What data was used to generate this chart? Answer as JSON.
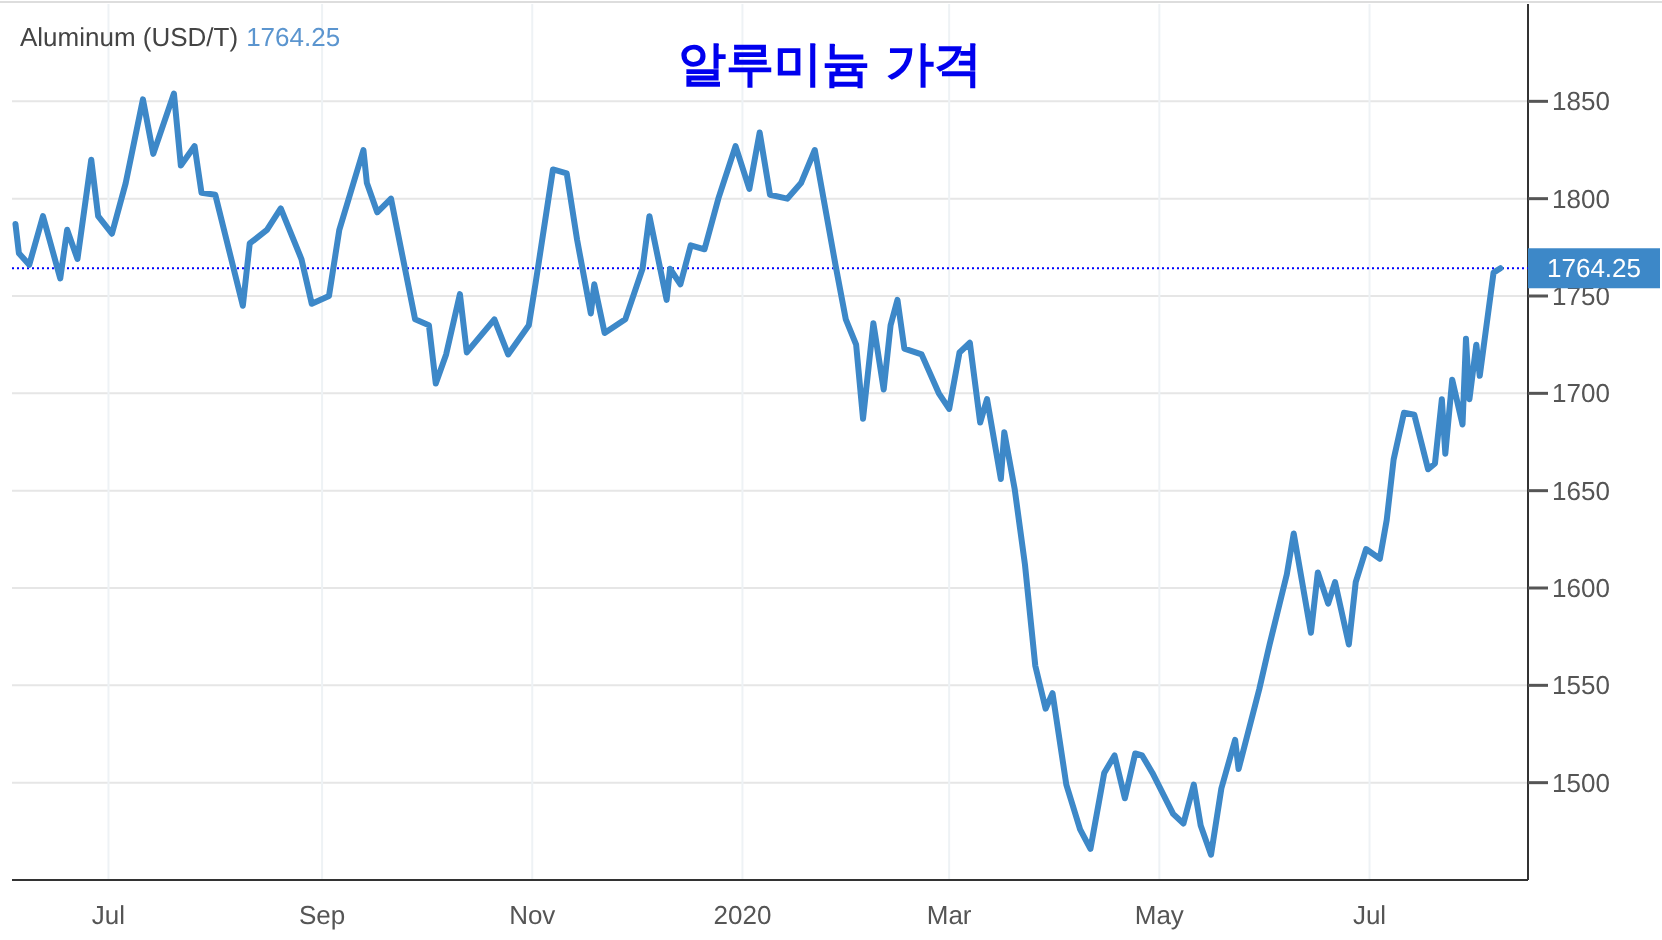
{
  "chart_data": {
    "type": "line",
    "title": "알루미늄 가격",
    "subtitle": "Aluminum (USD/T)",
    "x": [
      "2019-06-04",
      "2019-06-05",
      "2019-06-08",
      "2019-06-12",
      "2019-06-17",
      "2019-06-19",
      "2019-06-22",
      "2019-06-26",
      "2019-06-28",
      "2019-07-02",
      "2019-07-06",
      "2019-07-11",
      "2019-07-14",
      "2019-07-20",
      "2019-07-22",
      "2019-07-26",
      "2019-07-28",
      "2019-08-01",
      "2019-08-09",
      "2019-08-11",
      "2019-08-16",
      "2019-08-20",
      "2019-08-26",
      "2019-08-29",
      "2019-09-03",
      "2019-09-06",
      "2019-09-13",
      "2019-09-14",
      "2019-09-17",
      "2019-09-21",
      "2019-09-28",
      "2019-10-02",
      "2019-10-04",
      "2019-10-07",
      "2019-10-11",
      "2019-10-13",
      "2019-10-21",
      "2019-10-25",
      "2019-10-31",
      "2019-11-02",
      "2019-11-07",
      "2019-11-11",
      "2019-11-14",
      "2019-11-18",
      "2019-11-19",
      "2019-11-22",
      "2019-11-28",
      "2019-12-03",
      "2019-12-05",
      "2019-12-10",
      "2019-12-11",
      "2019-12-14",
      "2019-12-17",
      "2019-12-21",
      "2019-12-25",
      "2019-12-30",
      "2020-01-03",
      "2020-01-06",
      "2020-01-09",
      "2020-01-14",
      "2020-01-18",
      "2020-01-22",
      "2020-01-28",
      "2020-01-31",
      "2020-02-03",
      "2020-02-05",
      "2020-02-08",
      "2020-02-11",
      "2020-02-13",
      "2020-02-15",
      "2020-02-17",
      "2020-02-22",
      "2020-02-27",
      "2020-03-01",
      "2020-03-04",
      "2020-03-07",
      "2020-03-10",
      "2020-03-12",
      "2020-03-16",
      "2020-03-17",
      "2020-03-20",
      "2020-03-23",
      "2020-03-26",
      "2020-03-29",
      "2020-03-31",
      "2020-04-04",
      "2020-04-08",
      "2020-04-11",
      "2020-04-15",
      "2020-04-18",
      "2020-04-21",
      "2020-04-24",
      "2020-04-26",
      "2020-04-29",
      "2020-05-05",
      "2020-05-08",
      "2020-05-11",
      "2020-05-13",
      "2020-05-16",
      "2020-05-19",
      "2020-05-23",
      "2020-05-24",
      "2020-05-30",
      "2020-06-02",
      "2020-06-07",
      "2020-06-09",
      "2020-06-14",
      "2020-06-16",
      "2020-06-19",
      "2020-06-21",
      "2020-06-25",
      "2020-06-27",
      "2020-06-30",
      "2020-07-04",
      "2020-07-06",
      "2020-07-08",
      "2020-07-11",
      "2020-07-14",
      "2020-07-18",
      "2020-07-20",
      "2020-07-22",
      "2020-07-23",
      "2020-07-25",
      "2020-07-28",
      "2020-07-29",
      "2020-07-30",
      "2020-08-01",
      "2020-08-02",
      "2020-08-06",
      "2020-08-08"
    ],
    "series": [
      {
        "color": "#3d88c8",
        "values": [
          1787,
          1772,
          1766,
          1791,
          1759,
          1784,
          1769,
          1820,
          1791,
          1782,
          1808,
          1851,
          1823,
          1854,
          1817,
          1827,
          1803,
          1802,
          1745,
          1777,
          1784,
          1795,
          1769,
          1746,
          1750,
          1784,
          1825,
          1808,
          1793,
          1800,
          1738,
          1735,
          1705,
          1720,
          1751,
          1721,
          1738,
          1720,
          1735,
          1757,
          1815,
          1813,
          1779,
          1741,
          1756,
          1731,
          1738,
          1764,
          1791,
          1748,
          1764,
          1756,
          1776,
          1774,
          1800,
          1827,
          1805,
          1834,
          1802,
          1800,
          1808,
          1825,
          1766,
          1738,
          1725,
          1687,
          1736,
          1702,
          1735,
          1748,
          1723,
          1720,
          1700,
          1692,
          1721,
          1726,
          1685,
          1697,
          1656,
          1680,
          1651,
          1612,
          1560,
          1538,
          1546,
          1499,
          1476,
          1466,
          1505,
          1514,
          1492,
          1515,
          1514,
          1505,
          1484,
          1479,
          1499,
          1478,
          1463,
          1497,
          1522,
          1507,
          1548,
          1571,
          1607,
          1628,
          1577,
          1608,
          1592,
          1603,
          1571,
          1603,
          1620,
          1615,
          1635,
          1666,
          1690,
          1689,
          1661,
          1664,
          1697,
          1669,
          1707,
          1684,
          1728,
          1697,
          1725,
          1709,
          1762,
          1764.25
        ]
      }
    ],
    "xlim": [
      "2019-06-03",
      "2020-08-16"
    ],
    "xticks": [
      {
        "value": "2019-07-01",
        "label": "Jul"
      },
      {
        "value": "2019-09-01",
        "label": "Sep"
      },
      {
        "value": "2019-11-01",
        "label": "Nov"
      },
      {
        "value": "2020-01-01",
        "label": "2020"
      },
      {
        "value": "2020-03-01",
        "label": "Mar"
      },
      {
        "value": "2020-05-01",
        "label": "May"
      },
      {
        "value": "2020-07-01",
        "label": "Jul"
      }
    ],
    "ylim": [
      1450,
      1900
    ],
    "yticks": [
      1500,
      1550,
      1600,
      1650,
      1700,
      1750,
      1800,
      1850
    ],
    "grid": true,
    "ref_lines": [
      {
        "axis": "y",
        "value": 1764.25,
        "label": "1764.25",
        "color": "#0000ff",
        "line_style": "dotted"
      }
    ]
  }
}
